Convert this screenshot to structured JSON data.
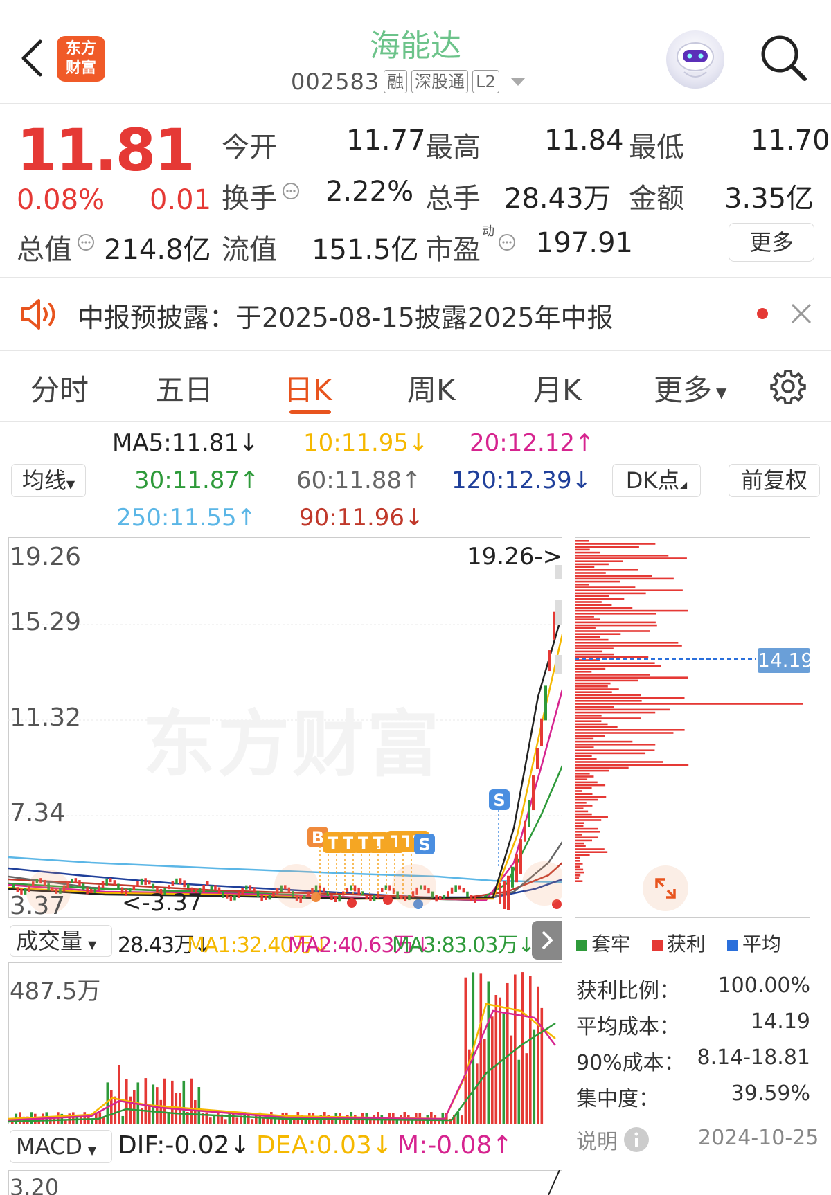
{
  "header": {
    "logo_text": "东方财富",
    "title": "海能达",
    "code": "002583",
    "tags": [
      "融",
      "深股通",
      "L2"
    ]
  },
  "quote": {
    "price": "11.81",
    "change_pct": "0.08%",
    "change_amt": "0.01",
    "open_label": "今开",
    "open": "11.77",
    "high_label": "最高",
    "high": "11.84",
    "low_label": "最低",
    "low": "11.70",
    "turnover_label": "换手",
    "turnover": "2.22%",
    "volume_label": "总手",
    "volume": "28.43万",
    "amount_label": "金额",
    "amount": "3.35亿",
    "mktcap_label": "总值",
    "mktcap": "214.8亿",
    "float_label": "流值",
    "float_cap": "151.5亿",
    "pe_label": "市盈",
    "pe_sup": "动",
    "pe": "197.91",
    "more_label": "更多"
  },
  "notice": {
    "text": "中报预披露：于2025-08-15披露2025年中报"
  },
  "tabs": [
    {
      "label": "分时"
    },
    {
      "label": "五日"
    },
    {
      "label": "日K"
    },
    {
      "label": "周K"
    },
    {
      "label": "月K"
    },
    {
      "label": "更多"
    }
  ],
  "ma": {
    "selector": "均线",
    "ma5": "MA5:11.81↓",
    "ma10": "10:11.95↓",
    "ma20": "20:12.12↑",
    "ma30": "30:11.87↑",
    "ma60": "60:11.88↑",
    "ma120": "120:12.39↓",
    "ma250": "250:11.55↑",
    "ma90": "90:11.96↓",
    "dk_label": "DK点",
    "adjust_label": "前复权",
    "colors": {
      "ma5": "#222222",
      "ma10": "#f5b800",
      "ma20": "#d6248f",
      "ma30": "#2e9a3a",
      "ma60": "#666666",
      "ma120": "#1f3f9a",
      "ma250": "#5bb6e6",
      "ma90": "#c0392b"
    }
  },
  "kline": {
    "y_labels": [
      "19.26",
      "15.29",
      "11.32",
      "7.34",
      "3.37"
    ],
    "max_marker": "19.26->",
    "min_marker": "<-3.37",
    "watermark": "东方财富",
    "signal_s": "S",
    "signal_b": "B",
    "signal_t": "T"
  },
  "chip": {
    "avg_cost_marker": "14.19",
    "legend": [
      {
        "label": "套牢",
        "color": "#2e9a3a"
      },
      {
        "label": "获利",
        "color": "#e53935"
      },
      {
        "label": "平均",
        "color": "#2a6fdb"
      }
    ],
    "stats": [
      {
        "label": "获利比例：",
        "value": "100.00%"
      },
      {
        "label": "平均成本：",
        "value": "14.19"
      },
      {
        "label": "90%成本：",
        "value": "8.14-18.81"
      },
      {
        "label": "集中度：",
        "value": "39.59%"
      }
    ],
    "note_label": "说明",
    "date": "2024-10-25"
  },
  "volume": {
    "selector": "成交量",
    "current": "28.43万↓",
    "ma1": "MA1:32.40万↓",
    "ma2": "MA2:40.63万↓",
    "ma3": "MA3:83.03万↓",
    "max_label": "487.5万"
  },
  "macd": {
    "selector": "MACD",
    "dif": "DIF:-0.02↓",
    "dea": "DEA:0.03↓",
    "m": "M:-0.08↑",
    "top_label": "3.20"
  }
}
